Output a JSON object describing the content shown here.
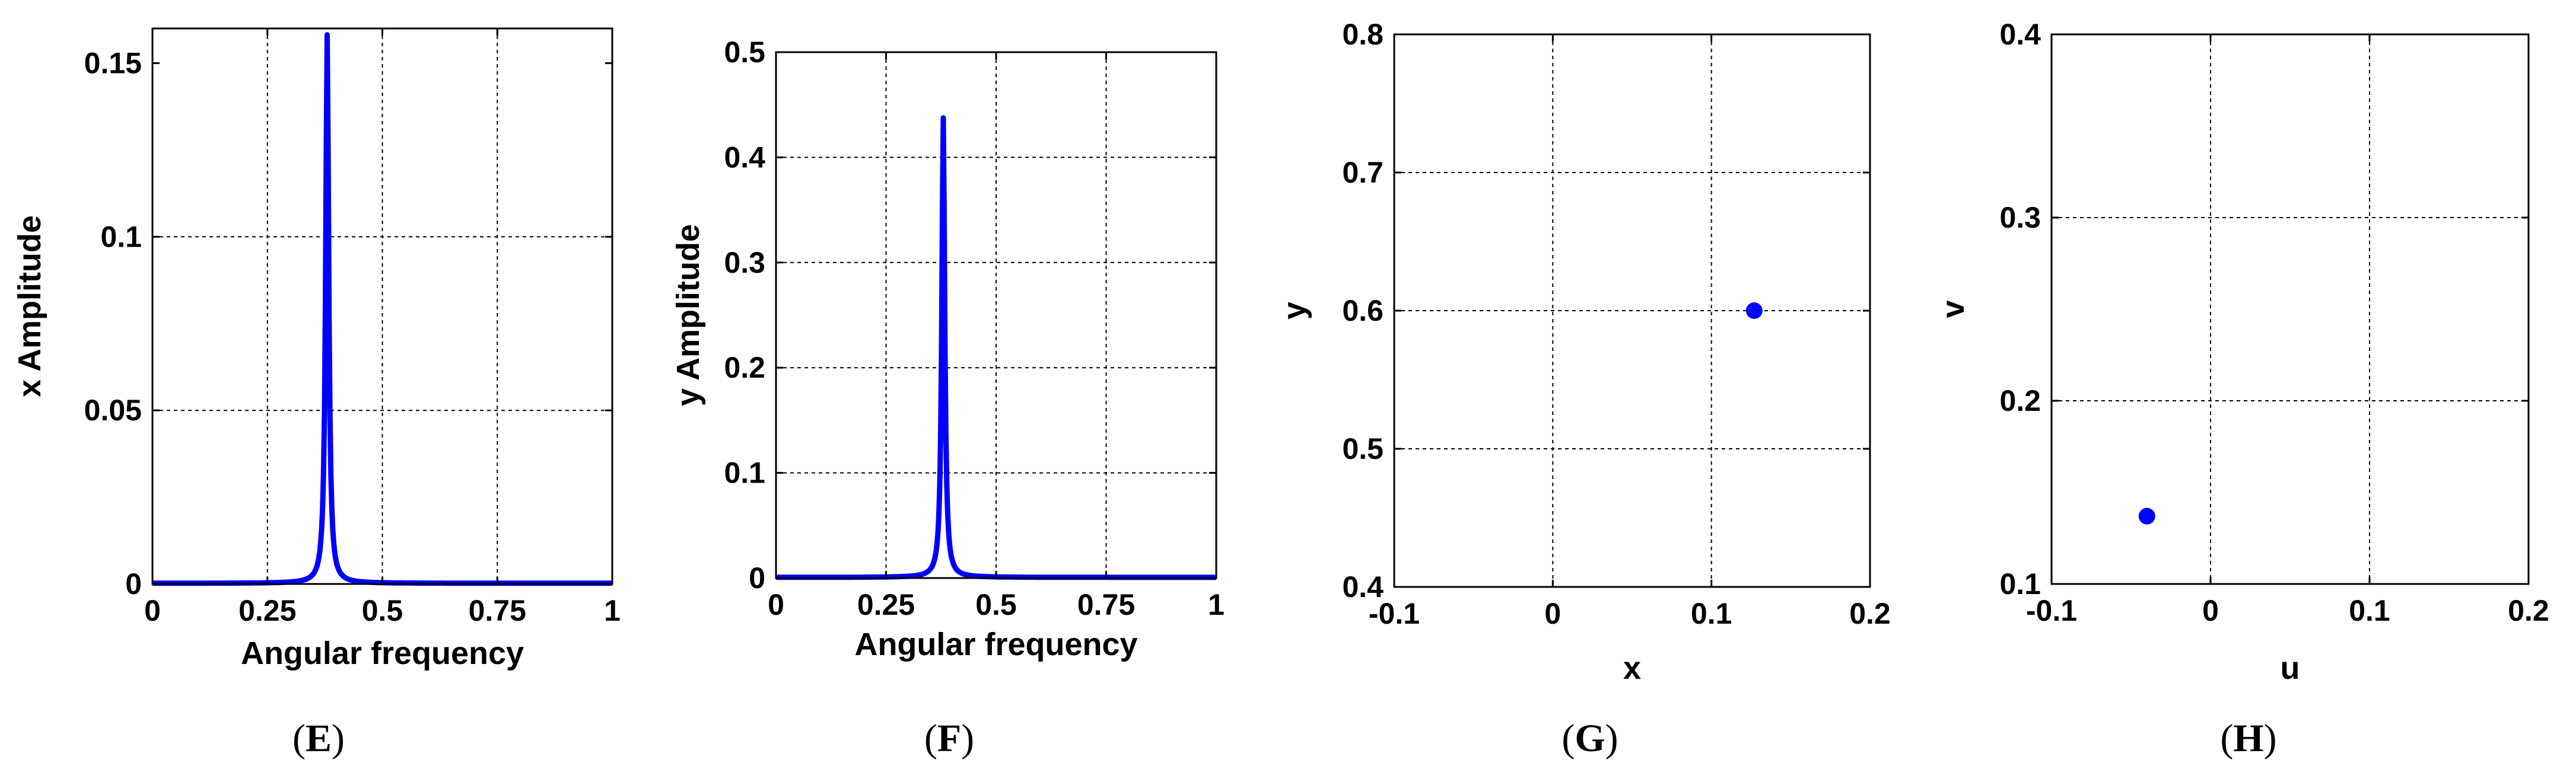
{
  "colors": {
    "series": "#0000ff",
    "grid": "#000000",
    "axes": "#000000",
    "background": "#ffffff"
  },
  "chart_data": [
    {
      "panel": "E",
      "caption": "(E)",
      "type": "line",
      "xlabel": "Angular frequency",
      "ylabel": "x Amplitude",
      "xlim": [
        0,
        1
      ],
      "ylim": [
        0,
        0.16
      ],
      "xticks": [
        0,
        0.25,
        0.5,
        0.75,
        1
      ],
      "xtick_labels": [
        "0",
        "0.25",
        "0.5",
        "0.75",
        "1"
      ],
      "yticks": [
        0,
        0.05,
        0.1,
        0.15
      ],
      "ytick_labels": [
        "0",
        "0.05",
        "0.1",
        "0.15"
      ],
      "grid": true,
      "series": [
        {
          "peak_x": 0.38,
          "peak_y": 0.158,
          "half_width": 0.004,
          "x": [
            0,
            0.1,
            0.2,
            0.25,
            0.3,
            0.33,
            0.35,
            0.36,
            0.37,
            0.375,
            0.38,
            0.385,
            0.39,
            0.4,
            0.41,
            0.43,
            0.46,
            0.5,
            0.6,
            0.75,
            0.9,
            1
          ],
          "y": [
            0.0005,
            0.0008,
            0.0013,
            0.0019,
            0.003,
            0.0048,
            0.0078,
            0.012,
            0.029,
            0.062,
            0.158,
            0.062,
            0.029,
            0.012,
            0.0075,
            0.0042,
            0.0027,
            0.0018,
            0.001,
            0.0006,
            0.0004,
            0.0003
          ]
        }
      ]
    },
    {
      "panel": "F",
      "caption": "(F)",
      "type": "line",
      "xlabel": "Angular frequency",
      "ylabel": "y Amplitude",
      "xlim": [
        0,
        1
      ],
      "ylim": [
        0,
        0.5
      ],
      "xticks": [
        0,
        0.25,
        0.5,
        0.75,
        1
      ],
      "xtick_labels": [
        "0",
        "0.25",
        "0.5",
        "0.75",
        "1"
      ],
      "yticks": [
        0,
        0.1,
        0.2,
        0.3,
        0.4,
        0.5
      ],
      "ytick_labels": [
        "0",
        "0.1",
        "0.2",
        "0.3",
        "0.4",
        "0.5"
      ],
      "grid": true,
      "series": [
        {
          "peak_x": 0.38,
          "peak_y": 0.437,
          "half_width": 0.004,
          "x": [
            0,
            0.1,
            0.2,
            0.25,
            0.3,
            0.33,
            0.35,
            0.36,
            0.37,
            0.375,
            0.38,
            0.385,
            0.39,
            0.4,
            0.41,
            0.43,
            0.46,
            0.5,
            0.6,
            0.75,
            0.9,
            1
          ],
          "y": [
            0.002,
            0.002,
            0.003,
            0.004,
            0.007,
            0.012,
            0.02,
            0.033,
            0.08,
            0.17,
            0.437,
            0.17,
            0.08,
            0.033,
            0.02,
            0.011,
            0.007,
            0.005,
            0.003,
            0.002,
            0.001,
            0.001
          ]
        }
      ]
    },
    {
      "panel": "G",
      "caption": "(G)",
      "type": "scatter",
      "xlabel": "x",
      "ylabel": "y",
      "xlim": [
        -0.1,
        0.2
      ],
      "ylim": [
        0.4,
        0.8
      ],
      "xticks": [
        -0.1,
        0,
        0.1,
        0.2
      ],
      "xtick_labels": [
        "-0.1",
        "0",
        "0.1",
        "0.2"
      ],
      "yticks": [
        0.4,
        0.5,
        0.6,
        0.7,
        0.8
      ],
      "ytick_labels": [
        "0.4",
        "0.5",
        "0.6",
        "0.7",
        "0.8"
      ],
      "grid": true,
      "points": [
        {
          "x": 0.127,
          "y": 0.6
        }
      ]
    },
    {
      "panel": "H",
      "caption": "(H)",
      "type": "scatter",
      "xlabel": "u",
      "ylabel": "v",
      "xlim": [
        -0.1,
        0.2
      ],
      "ylim": [
        0.1,
        0.4
      ],
      "xticks": [
        -0.1,
        0,
        0.1,
        0.2
      ],
      "xtick_labels": [
        "-0.1",
        "0",
        "0.1",
        "0.2"
      ],
      "yticks": [
        0.1,
        0.2,
        0.3,
        0.4
      ],
      "ytick_labels": [
        "0.1",
        "0.2",
        "0.3",
        "0.4"
      ],
      "grid": true,
      "points": [
        {
          "x": -0.04,
          "y": 0.137
        }
      ]
    }
  ]
}
